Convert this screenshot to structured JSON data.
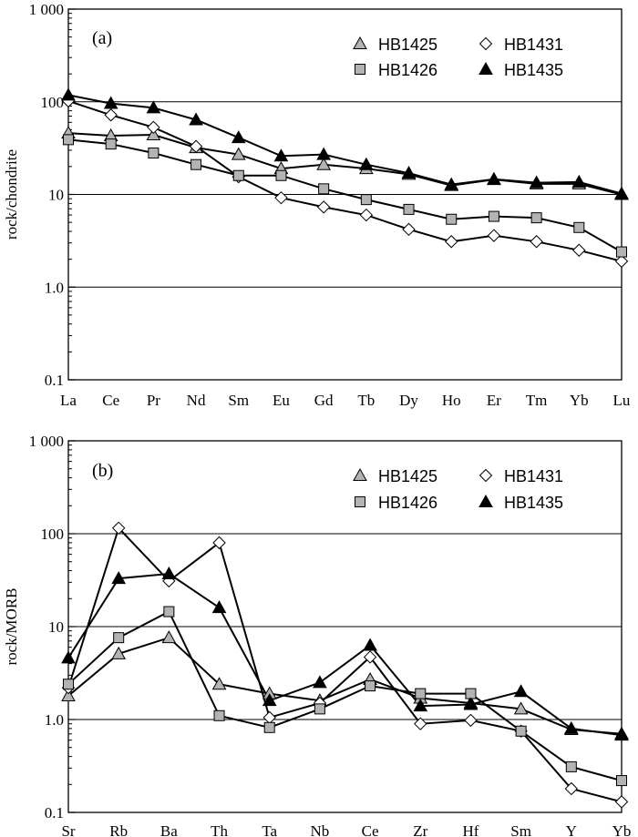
{
  "chart_data": [
    {
      "type": "line",
      "panel_label": "(a)",
      "ylabel": "rock/chondrite",
      "y_scale": "log",
      "ylim": [
        0.1,
        1000
      ],
      "y_ticks": [
        "0.1",
        "1.0",
        "10",
        "100",
        "1 000"
      ],
      "y_tick_values": [
        0.1,
        1,
        10,
        100,
        1000
      ],
      "grid": "horizontal",
      "legend_position": "top-right",
      "categories": [
        "La",
        "Ce",
        "Pr",
        "Nd",
        "Sm",
        "Eu",
        "Gd",
        "Tb",
        "Dy",
        "Ho",
        "Er",
        "Tm",
        "Yb",
        "Lu"
      ],
      "series": [
        {
          "name": "HB1425",
          "marker": "triangle",
          "fill": "#b3b3b3",
          "values": [
            46,
            43,
            44,
            32,
            27,
            19,
            21,
            19,
            16.5,
            12.5,
            14.5,
            13,
            13,
            10
          ]
        },
        {
          "name": "HB1431",
          "marker": "diamond",
          "fill": "#ffffff",
          "values": [
            102,
            72,
            53,
            33,
            15.5,
            9.2,
            7.3,
            6,
            4.2,
            3.1,
            3.6,
            3.1,
            2.5,
            1.9
          ]
        },
        {
          "name": "HB1426",
          "marker": "square",
          "fill": "#b3b3b3",
          "values": [
            39,
            35,
            28,
            21,
            16,
            16,
            11.5,
            8.8,
            6.9,
            5.4,
            5.8,
            5.6,
            4.4,
            2.4
          ]
        },
        {
          "name": "HB1435",
          "marker": "triangle",
          "fill": "#000000",
          "values": [
            118,
            96,
            86,
            64,
            41,
            26,
            27,
            21,
            17,
            12.8,
            14.6,
            13.4,
            13.6,
            10.2
          ]
        }
      ],
      "legend": [
        "HB1425",
        "HB1431",
        "HB1426",
        "HB1435"
      ]
    },
    {
      "type": "line",
      "panel_label": "(b)",
      "ylabel": "rock/MORB",
      "y_scale": "log",
      "ylim": [
        0.1,
        1000
      ],
      "y_ticks": [
        "0.1",
        "1.0",
        "10",
        "100",
        "1 000"
      ],
      "y_tick_values": [
        0.1,
        1,
        10,
        100,
        1000
      ],
      "grid": "horizontal",
      "legend_position": "top-right",
      "categories": [
        "Sr",
        "Rb",
        "Ba",
        "Th",
        "Ta",
        "Nb",
        "Ce",
        "Zr",
        "Hf",
        "Sm",
        "Y",
        "Yb"
      ],
      "series": [
        {
          "name": "HB1425",
          "marker": "triangle",
          "fill": "#b3b3b3",
          "values": [
            1.8,
            5.1,
            7.6,
            2.4,
            1.9,
            1.6,
            2.7,
            1.7,
            1.5,
            1.3,
            0.78,
            0.7
          ]
        },
        {
          "name": "HB1431",
          "marker": "diamond",
          "fill": "#ffffff",
          "values": [
            2.2,
            115,
            31,
            80,
            1.05,
            1.5,
            4.7,
            0.9,
            0.98,
            0.75,
            0.18,
            0.13
          ]
        },
        {
          "name": "HB1426",
          "marker": "square",
          "fill": "#b3b3b3",
          "values": [
            2.4,
            7.6,
            14.5,
            1.1,
            0.82,
            1.3,
            2.3,
            1.9,
            1.9,
            0.75,
            0.31,
            0.22
          ]
        },
        {
          "name": "HB1435",
          "marker": "triangle",
          "fill": "#000000",
          "values": [
            4.6,
            33,
            37,
            16,
            1.6,
            2.5,
            6.3,
            1.4,
            1.45,
            2.0,
            0.8,
            0.68
          ]
        }
      ],
      "legend": [
        "HB1425",
        "HB1431",
        "HB1426",
        "HB1435"
      ]
    }
  ]
}
